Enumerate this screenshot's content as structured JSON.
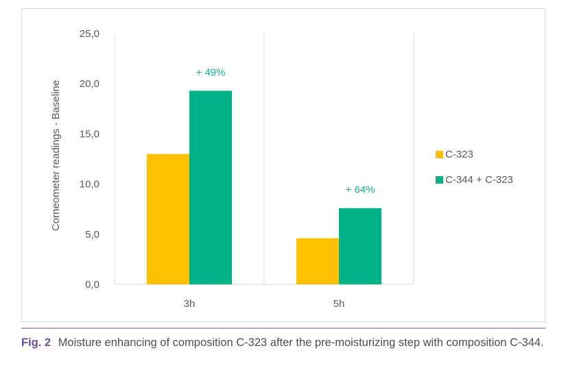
{
  "chart_data": {
    "type": "bar",
    "categories": [
      "3h",
      "5h"
    ],
    "series": [
      {
        "name": "C-323",
        "values": [
          13.0,
          4.6
        ],
        "color": "#ffc000"
      },
      {
        "name": "C-344 + C-323",
        "values": [
          19.3,
          7.6
        ],
        "color": "#00b386"
      }
    ],
    "annotations": [
      "+ 49%",
      "+ 64%"
    ],
    "annotation_color": "#1aae8c",
    "ylabel": "Corneometer readings - Baseline",
    "xlabel": "",
    "ylim": [
      0,
      25
    ],
    "yticks": [
      0,
      5,
      10,
      15,
      20,
      25
    ],
    "ytick_labels": [
      "0,0",
      "5,0",
      "10,0",
      "15,0",
      "20,0",
      "25,0"
    ],
    "grid": "vertical separators between categories",
    "legend_position": "right"
  },
  "caption": {
    "label": "Fig. 2",
    "text": "Moisture enhancing of composition C-323 after the pre-moisturizing step with composition C-344."
  }
}
